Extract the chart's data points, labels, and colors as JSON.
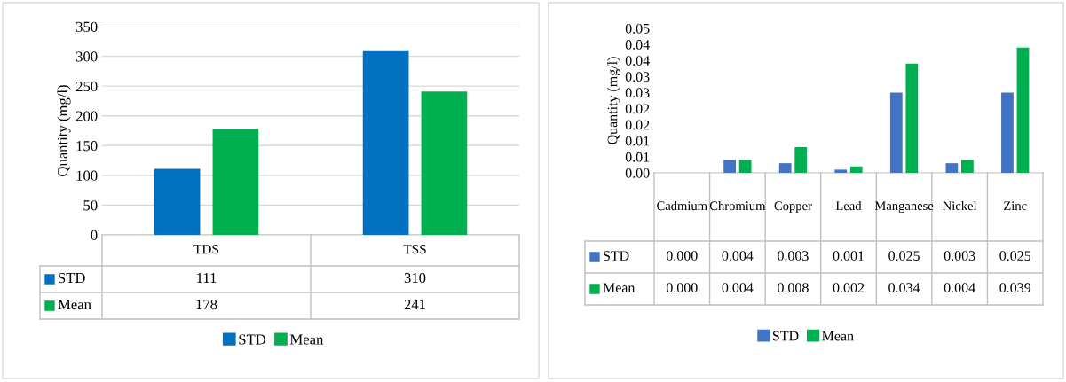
{
  "chart_data": [
    {
      "type": "bar",
      "categories": [
        "TDS",
        "TSS"
      ],
      "ylabel": "Quantity (mg/l)",
      "ylim": [
        0,
        350
      ],
      "yticks": [
        0,
        50,
        100,
        150,
        200,
        250,
        300,
        350
      ],
      "grid": "y",
      "legend": "bottom",
      "data_labels": true,
      "series": [
        {
          "name": "STD",
          "color": "#0070c0",
          "values": [
            111,
            310
          ]
        },
        {
          "name": "Mean",
          "color": "#00b050",
          "values": [
            178,
            241
          ]
        }
      ]
    },
    {
      "type": "bar",
      "categories": [
        "Cadmium",
        "Chromium",
        "Copper",
        "Lead",
        "Manganese",
        "Nickel",
        "Zinc"
      ],
      "ylabel": "Quantity (mg/l)",
      "ylim": [
        0,
        0.045
      ],
      "yticks": [
        {
          "value": 0,
          "label": "0.00"
        },
        {
          "value": 0.005,
          "label": "0.01"
        },
        {
          "value": 0.01,
          "label": "0.01"
        },
        {
          "value": 0.015,
          "label": "0.02"
        },
        {
          "value": 0.02,
          "label": "0.02"
        },
        {
          "value": 0.025,
          "label": "0.03"
        },
        {
          "value": 0.03,
          "label": "0.03"
        },
        {
          "value": 0.035,
          "label": "0.04"
        },
        {
          "value": 0.04,
          "label": "0.04"
        },
        {
          "value": 0.045,
          "label": "0.05"
        }
      ],
      "grid": false,
      "legend": "bottom",
      "series": [
        {
          "name": "STD",
          "color": "#4472c4",
          "values": [
            0.0,
            0.004,
            0.003,
            0.001,
            0.025,
            0.003,
            0.025
          ],
          "value_labels": [
            "0.000",
            "0.004",
            "0.003",
            "0.001",
            "0.025",
            "0.003",
            "0.025"
          ]
        },
        {
          "name": "Mean",
          "color": "#00b050",
          "values": [
            0.0,
            0.004,
            0.008,
            0.002,
            0.034,
            0.004,
            0.039
          ],
          "value_labels": [
            "0.000",
            "0.004",
            "0.008",
            "0.002",
            "0.034",
            "0.004",
            "0.039"
          ]
        }
      ]
    }
  ]
}
